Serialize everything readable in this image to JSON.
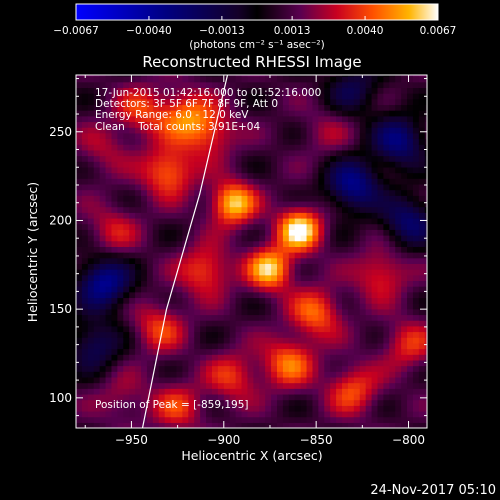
{
  "chart_data": {
    "type": "heatmap",
    "title": "Reconstructed RHESSI Image",
    "xlabel": "Heliocentric X (arcsec)",
    "ylabel": "Heliocentric Y (arcsec)",
    "xlim": [
      -980,
      -790
    ],
    "ylim": [
      83,
      282
    ],
    "x_ticks": [
      {
        "value": -950,
        "label": "−950"
      },
      {
        "value": -900,
        "label": "−900"
      },
      {
        "value": -850,
        "label": "−850"
      },
      {
        "value": -800,
        "label": "−800"
      }
    ],
    "y_ticks": [
      {
        "value": 100,
        "label": "100"
      },
      {
        "value": 150,
        "label": "150"
      },
      {
        "value": 200,
        "label": "200"
      },
      {
        "value": 250,
        "label": "250"
      }
    ],
    "colorbar": {
      "colormap": "blue-black-purple-red-orange-yellow-white",
      "range": [
        -0.0067,
        0.0067
      ],
      "tick_values": [
        -0.0067,
        -0.004,
        -0.0013,
        0.0013,
        0.004,
        0.0067
      ],
      "tick_labels": [
        "−0.0067",
        "−0.0040",
        "−0.0013",
        "0.0013",
        "0.0040",
        "0.0067"
      ],
      "unit_label": "(photons cm⁻² s⁻¹ asec⁻²)"
    },
    "annotations": [
      "17-Jun-2015 01:42:16.000 to 01:52:16.000",
      "Detectors: 3F 5F 6F 7F 8F 9F, Att 0",
      "Energy Range: 6.0 - 12.0 keV",
      "Clean    Total counts: 3.91E+04"
    ],
    "peak_text": "Position of Peak = [-859,195]",
    "peak": {
      "x": -859,
      "y": 195
    },
    "sources": [
      {
        "x": -895,
        "y": 210,
        "value": 0.0061
      },
      {
        "x": -859,
        "y": 195,
        "value": 0.0067
      },
      {
        "x": -875,
        "y": 173,
        "value": 0.006
      },
      {
        "x": -930,
        "y": 228,
        "value": 0.0048
      },
      {
        "x": -922,
        "y": 260,
        "value": 0.0042
      },
      {
        "x": -945,
        "y": 262,
        "value": 0.0036
      },
      {
        "x": -908,
        "y": 250,
        "value": 0.004
      },
      {
        "x": -910,
        "y": 172,
        "value": 0.0042
      },
      {
        "x": -850,
        "y": 148,
        "value": 0.0044
      },
      {
        "x": -815,
        "y": 170,
        "value": 0.0037
      },
      {
        "x": -865,
        "y": 120,
        "value": 0.0045
      },
      {
        "x": -830,
        "y": 105,
        "value": 0.004
      },
      {
        "x": -935,
        "y": 140,
        "value": 0.0037
      },
      {
        "x": -895,
        "y": 112,
        "value": 0.0036
      },
      {
        "x": -960,
        "y": 195,
        "value": 0.003
      },
      {
        "x": -845,
        "y": 250,
        "value": 0.0022
      },
      {
        "x": -800,
        "y": 130,
        "value": 0.0035
      },
      {
        "x": -955,
        "y": 100,
        "value": 0.0025
      },
      {
        "x": -925,
        "y": 95,
        "value": 0.0035
      },
      {
        "x": -965,
        "y": 240,
        "value": 0.0025
      }
    ],
    "negative_regions": [
      {
        "x": -965,
        "y": 165,
        "value": -0.0048
      },
      {
        "x": -830,
        "y": 220,
        "value": -0.0045
      },
      {
        "x": -805,
        "y": 245,
        "value": -0.004
      },
      {
        "x": -970,
        "y": 130,
        "value": -0.003
      },
      {
        "x": -800,
        "y": 200,
        "value": -0.0035
      },
      {
        "x": -830,
        "y": 275,
        "value": -0.0025
      }
    ],
    "limb_curve": [
      {
        "x": -944,
        "y": 83
      },
      {
        "x": -931,
        "y": 150
      },
      {
        "x": -913,
        "y": 215
      },
      {
        "x": -898,
        "y": 282
      }
    ]
  },
  "footer": {
    "timestamp": "24-Nov-2017 05:10"
  }
}
